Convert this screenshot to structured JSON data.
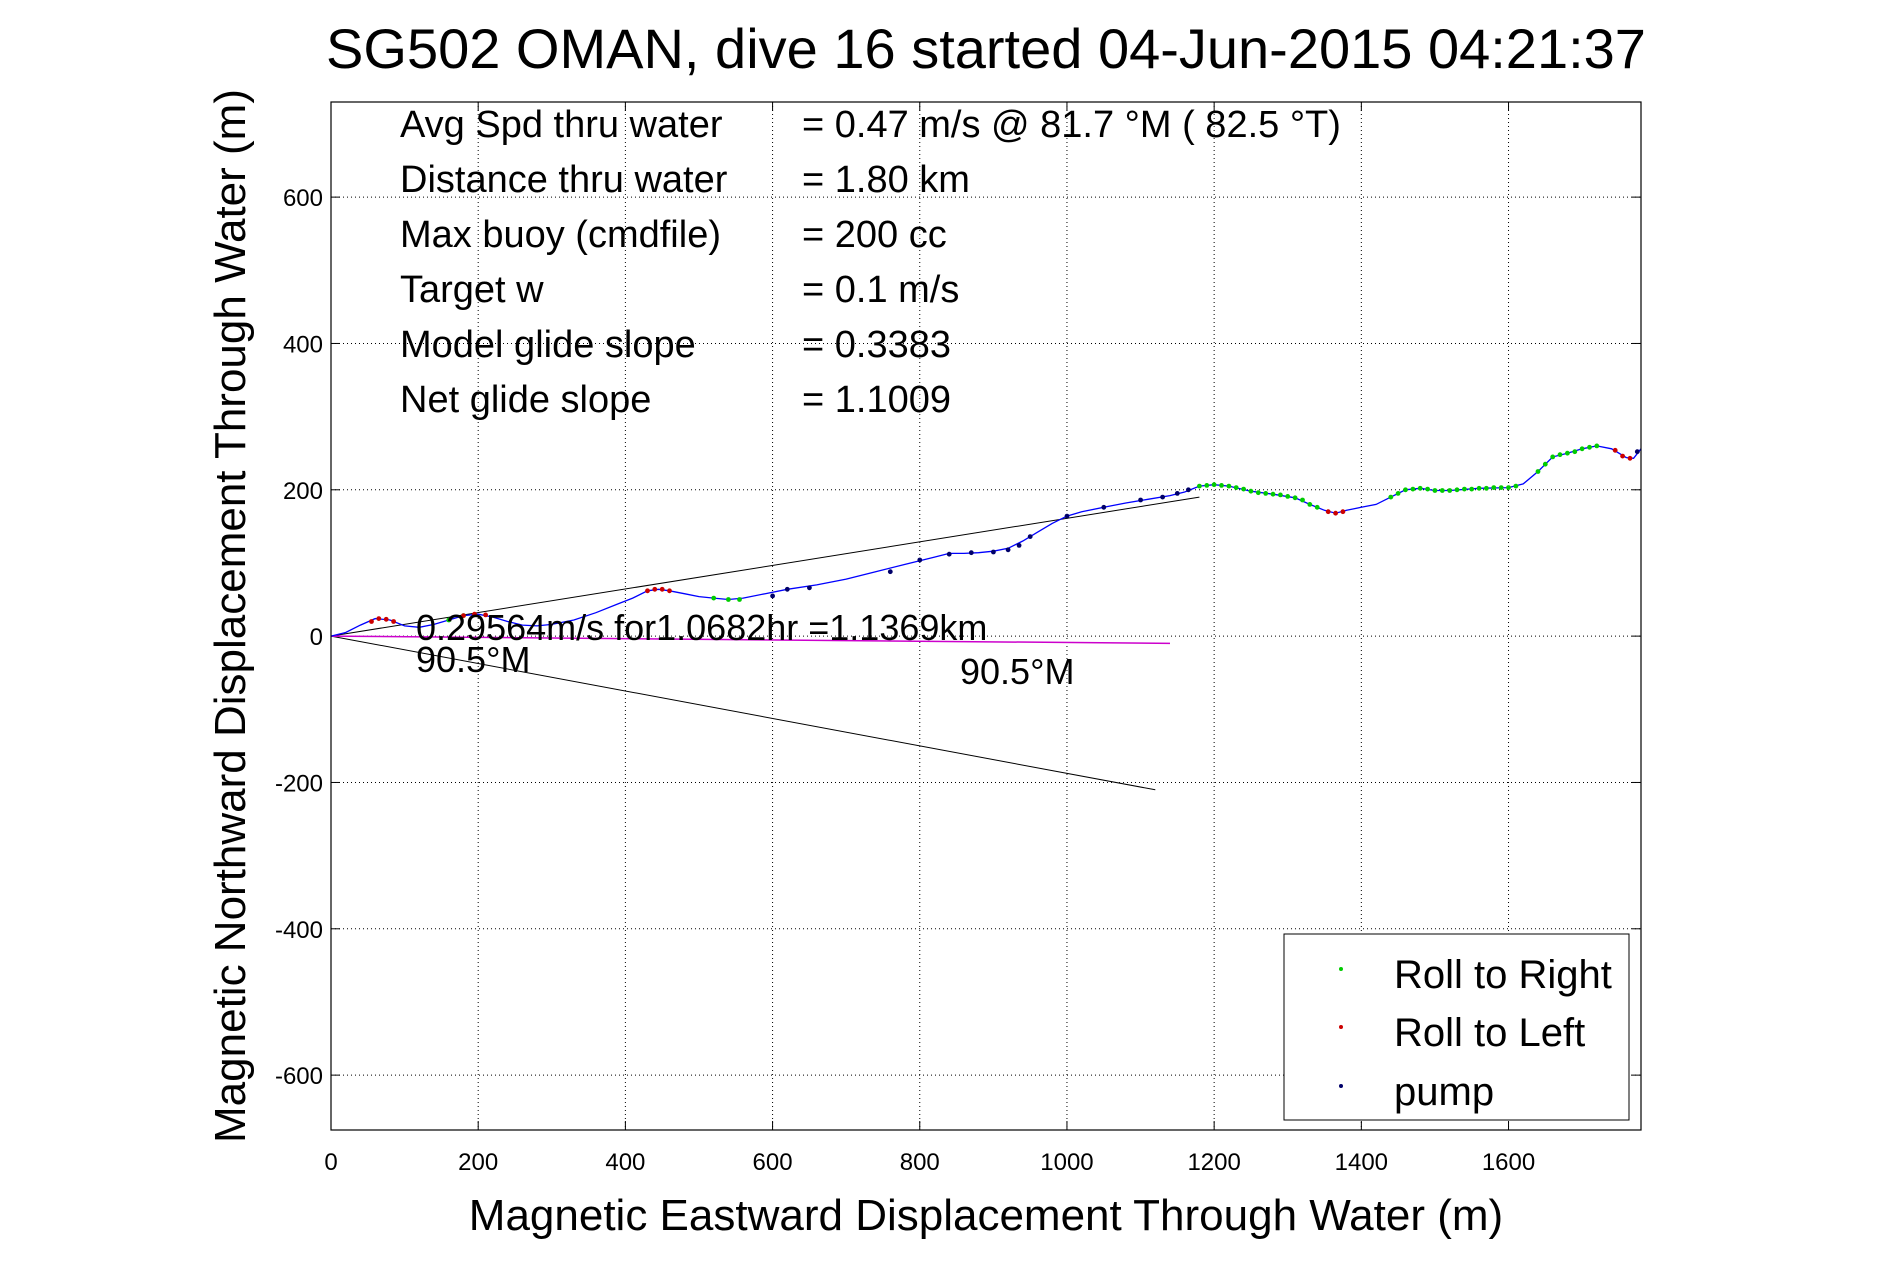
{
  "chart_data": {
    "type": "line",
    "title": "SG502 OMAN, dive 16 started 04-Jun-2015 04:21:37",
    "xlabel": "Magnetic Eastward Displacement Through Water (m)",
    "ylabel": "Magnetic Northward Displacement Through Water (m)",
    "xlim": [
      0,
      1780
    ],
    "ylim": [
      -675,
      730
    ],
    "xticks": [
      "0",
      "200",
      "400",
      "600",
      "800",
      "1000",
      "1200",
      "1400",
      "1600"
    ],
    "xtick_values": [
      0,
      200,
      400,
      600,
      800,
      1000,
      1200,
      1400,
      1600
    ],
    "yticks": [
      "-600",
      "-400",
      "-200",
      "0",
      "200",
      "400",
      "600"
    ],
    "ytick_values": [
      -600,
      -400,
      -200,
      0,
      200,
      400,
      600
    ],
    "grid": true,
    "legend_position": "bottom-right",
    "stats": [
      {
        "label": "Avg Spd thru water",
        "value": "=  0.47 m/s @  81.7 °M ( 82.5 °T)"
      },
      {
        "label": "Distance thru water",
        "value": "=  1.80 km"
      },
      {
        "label": "Max buoy (cmdfile)",
        "value": "= 200 cc"
      },
      {
        "label": "Target w",
        "value": "= 0.1 m/s"
      },
      {
        "label": "Model glide slope",
        "value": "= 0.3383"
      },
      {
        "label": "Net glide slope",
        "value": "= 1.1009"
      }
    ],
    "annotations": {
      "current_text": "0.29564m/s for1.0682hr =1.1369km",
      "heading_start": "90.5°M",
      "heading_end": "90.5°M"
    },
    "track": [
      [
        0,
        0
      ],
      [
        20,
        5
      ],
      [
        40,
        15
      ],
      [
        60,
        24
      ],
      [
        80,
        22
      ],
      [
        100,
        14
      ],
      [
        120,
        12
      ],
      [
        140,
        16
      ],
      [
        160,
        22
      ],
      [
        180,
        28
      ],
      [
        200,
        30
      ],
      [
        220,
        26
      ],
      [
        240,
        20
      ],
      [
        260,
        15
      ],
      [
        280,
        14
      ],
      [
        300,
        16
      ],
      [
        330,
        22
      ],
      [
        360,
        32
      ],
      [
        390,
        44
      ],
      [
        410,
        52
      ],
      [
        430,
        62
      ],
      [
        445,
        64
      ],
      [
        460,
        62
      ],
      [
        480,
        58
      ],
      [
        500,
        54
      ],
      [
        520,
        52
      ],
      [
        540,
        50
      ],
      [
        560,
        52
      ],
      [
        590,
        58
      ],
      [
        620,
        64
      ],
      [
        660,
        70
      ],
      [
        700,
        78
      ],
      [
        740,
        88
      ],
      [
        780,
        98
      ],
      [
        820,
        108
      ],
      [
        840,
        113
      ],
      [
        860,
        113
      ],
      [
        880,
        114
      ],
      [
        900,
        116
      ],
      [
        920,
        120
      ],
      [
        940,
        130
      ],
      [
        960,
        142
      ],
      [
        980,
        154
      ],
      [
        1000,
        164
      ],
      [
        1020,
        170
      ],
      [
        1050,
        176
      ],
      [
        1080,
        182
      ],
      [
        1110,
        187
      ],
      [
        1140,
        192
      ],
      [
        1160,
        197
      ],
      [
        1180,
        205
      ],
      [
        1200,
        207
      ],
      [
        1220,
        205
      ],
      [
        1250,
        198
      ],
      [
        1280,
        194
      ],
      [
        1310,
        189
      ],
      [
        1330,
        180
      ],
      [
        1350,
        172
      ],
      [
        1365,
        168
      ],
      [
        1380,
        172
      ],
      [
        1400,
        176
      ],
      [
        1420,
        180
      ],
      [
        1440,
        190
      ],
      [
        1460,
        200
      ],
      [
        1480,
        202
      ],
      [
        1500,
        199
      ],
      [
        1520,
        199
      ],
      [
        1560,
        202
      ],
      [
        1600,
        203
      ],
      [
        1620,
        208
      ],
      [
        1640,
        225
      ],
      [
        1660,
        245
      ],
      [
        1680,
        250
      ],
      [
        1700,
        256
      ],
      [
        1720,
        260
      ],
      [
        1740,
        256
      ],
      [
        1760,
        244
      ],
      [
        1770,
        243
      ],
      [
        1780,
        256
      ]
    ],
    "series": [
      {
        "name": "Roll to Right",
        "color": "#00cc00",
        "x": [
          1180,
          1190,
          1200,
          1210,
          1220,
          1230,
          1240,
          1250,
          1260,
          1270,
          1280,
          1290,
          1300,
          1310,
          1320,
          1330,
          1340,
          1440,
          1450,
          1460,
          1470,
          1480,
          1490,
          1500,
          1510,
          1520,
          1530,
          1540,
          1550,
          1560,
          1570,
          1580,
          1590,
          1600,
          1610,
          1640,
          1650,
          1660,
          1670,
          1680,
          1690,
          1700,
          1710,
          1720,
          160,
          180,
          520,
          540,
          555
        ],
        "y": [
          205,
          206,
          207,
          206,
          205,
          203,
          201,
          198,
          196,
          195,
          194,
          193,
          191,
          189,
          186,
          180,
          176,
          190,
          195,
          200,
          201,
          202,
          201,
          199,
          199,
          199,
          200,
          201,
          201,
          202,
          202,
          203,
          203,
          203,
          205,
          225,
          235,
          245,
          248,
          250,
          252,
          256,
          258,
          260,
          22,
          28,
          52,
          50,
          50
        ]
      },
      {
        "name": "Roll to Left",
        "color": "#cc0000",
        "x": [
          55,
          65,
          75,
          85,
          180,
          195,
          210,
          430,
          440,
          450,
          460,
          1355,
          1365,
          1375,
          1745,
          1755,
          1765
        ],
        "y": [
          20,
          24,
          23,
          20,
          28,
          30,
          29,
          62,
          64,
          64,
          62,
          170,
          168,
          170,
          254,
          246,
          243
        ]
      },
      {
        "name": "pump",
        "color": "#00006a",
        "x": [
          600,
          620,
          650,
          760,
          800,
          840,
          870,
          900,
          920,
          935,
          950,
          1000,
          1050,
          1100,
          1130,
          1150,
          1165,
          1775
        ],
        "y": [
          55,
          64,
          66,
          88,
          104,
          112,
          114,
          115,
          118,
          124,
          136,
          164,
          176,
          186,
          190,
          195,
          200,
          252
        ]
      }
    ],
    "current_line": [
      [
        0,
        0
      ],
      [
        1140,
        -10
      ]
    ],
    "envelope_upper": [
      [
        0,
        0
      ],
      [
        1180,
        190
      ]
    ],
    "envelope_lower": [
      [
        0,
        0
      ],
      [
        1120,
        -210
      ]
    ]
  }
}
